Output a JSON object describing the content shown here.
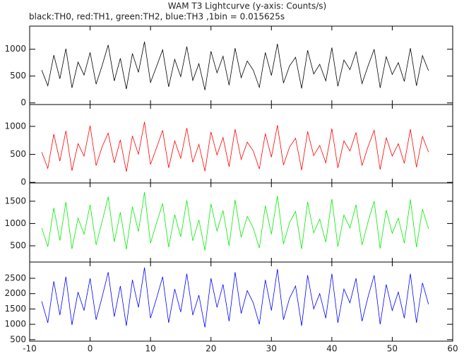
{
  "chart_data": {
    "type": "line",
    "title": "WAM T3 Lightcurve (y-axis: Counts/s)",
    "subtitle": "black:TH0, red:TH1, green:TH2, blue:TH3 ,1bin = 0.015625s",
    "xlim": [
      -10,
      60
    ],
    "xticks": [
      -10,
      0,
      10,
      20,
      30,
      40,
      50,
      60
    ],
    "x": [
      -8,
      -7,
      -6,
      -5,
      -4,
      -3,
      -2,
      -1,
      0,
      1,
      2,
      3,
      4,
      5,
      6,
      7,
      8,
      9,
      10,
      11,
      12,
      13,
      14,
      15,
      16,
      17,
      18,
      19,
      20,
      21,
      22,
      23,
      24,
      25,
      26,
      27,
      28,
      29,
      30,
      31,
      32,
      33,
      34,
      35,
      36,
      37,
      38,
      39,
      40,
      41,
      42,
      43,
      44,
      45,
      46,
      47,
      48,
      49,
      50,
      51,
      52,
      53,
      54,
      55,
      56
    ],
    "panels": [
      {
        "color": "#000000",
        "ylim": [
          -30,
          1430
        ],
        "yticks": [
          0,
          500,
          1000
        ],
        "values": [
          610,
          320,
          890,
          450,
          1010,
          280,
          760,
          520,
          940,
          350,
          700,
          1080,
          410,
          830,
          260,
          920,
          570,
          1140,
          380,
          680,
          990,
          300,
          810,
          490,
          1050,
          420,
          730,
          240,
          960,
          560,
          870,
          330,
          1020,
          470,
          780,
          610,
          290,
          940,
          510,
          1100,
          370,
          690,
          850,
          270,
          980,
          540,
          720,
          410,
          1030,
          310,
          800,
          620,
          950,
          360,
          690,
          1000,
          280,
          860,
          530,
          750,
          400,
          1020,
          320,
          880,
          600
        ]
      },
      {
        "color": "#ff0000",
        "ylim": [
          -10,
          1390
        ],
        "yticks": [
          0,
          500,
          1000
        ],
        "values": [
          540,
          250,
          860,
          380,
          920,
          210,
          690,
          470,
          1010,
          300,
          640,
          880,
          350,
          760,
          190,
          830,
          500,
          1080,
          320,
          620,
          930,
          260,
          740,
          430,
          970,
          360,
          680,
          200,
          900,
          490,
          800,
          280,
          950,
          410,
          720,
          560,
          240,
          870,
          450,
          1020,
          310,
          630,
          790,
          220,
          910,
          480,
          660,
          350,
          960,
          260,
          740,
          560,
          890,
          300,
          640,
          930,
          230,
          800,
          470,
          690,
          340,
          950,
          270,
          820,
          540
        ]
      },
      {
        "color": "#00ee00",
        "ylim": [
          135,
          1910
        ],
        "yticks": [
          500,
          1000,
          1500
        ],
        "values": [
          900,
          480,
          1350,
          620,
          1480,
          430,
          1120,
          760,
          1420,
          520,
          1050,
          1600,
          590,
          1250,
          420,
          1380,
          820,
          1700,
          560,
          1010,
          1450,
          470,
          1200,
          700,
          1520,
          610,
          1080,
          400,
          1440,
          830,
          1290,
          500,
          1530,
          690,
          1160,
          900,
          450,
          1400,
          760,
          1620,
          540,
          1020,
          1270,
          430,
          1480,
          790,
          1100,
          580,
          1550,
          480,
          1190,
          900,
          1420,
          520,
          1040,
          1500,
          440,
          1300,
          780,
          1120,
          560,
          1540,
          470,
          1320,
          880
        ]
      },
      {
        "color": "#0000ff",
        "ylim": [
          450,
          3030
        ],
        "yticks": [
          500,
          1000,
          1500,
          2000,
          2500
        ],
        "values": [
          1750,
          1050,
          2400,
          1300,
          2550,
          980,
          2050,
          1450,
          2500,
          1150,
          1900,
          2700,
          1250,
          2250,
          950,
          2450,
          1550,
          2850,
          1200,
          1850,
          2550,
          1050,
          2150,
          1400,
          2650,
          1300,
          1950,
          900,
          2500,
          1550,
          2300,
          1100,
          2700,
          1350,
          2100,
          1700,
          1000,
          2450,
          1450,
          2800,
          1150,
          1850,
          2250,
          950,
          2600,
          1500,
          2000,
          1200,
          2650,
          1050,
          2150,
          1700,
          2500,
          1100,
          1900,
          2600,
          1000,
          2300,
          1450,
          2050,
          1200,
          2650,
          1050,
          2350,
          1650
        ]
      }
    ]
  }
}
